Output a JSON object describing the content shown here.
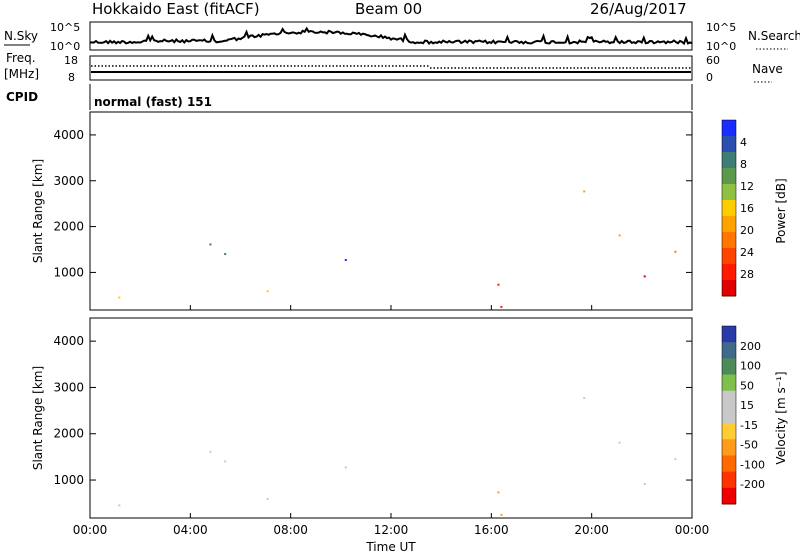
{
  "header": {
    "station": "Hokkaido East (fitACF)",
    "beam": "Beam 00",
    "date": "26/Aug/2017"
  },
  "nsky_panel": {
    "left_label": "N.Sky",
    "right_label": "N.Search",
    "ticks_left": [
      "10^5",
      "10^0"
    ],
    "ticks_right": [
      "10^5",
      "10^0"
    ]
  },
  "freq_panel": {
    "left_label_1": "Freq.",
    "left_label_2": "[MHz]",
    "right_label": "Nave",
    "ticks_left": [
      "18",
      "8"
    ],
    "ticks_right": [
      "60",
      "0"
    ]
  },
  "cpid_panel": {
    "label": "CPID",
    "value": "normal (fast) 151"
  },
  "chart_data": [
    {
      "type": "heatmap",
      "name": "power",
      "ylabel": "Slant Range [km]",
      "ylim": [
        180,
        4500
      ],
      "yticks": [
        "1000",
        "2000",
        "3000",
        "4000"
      ],
      "colorbar": {
        "label": "Power [dB]",
        "ticks": [
          "4",
          "8",
          "12",
          "16",
          "20",
          "24",
          "28"
        ],
        "colors": [
          "#1a2cff",
          "#2a4fb0",
          "#3f7d77",
          "#5a9a4a",
          "#8fc043",
          "#ffcc00",
          "#ffa200",
          "#ff7700",
          "#ff4400",
          "#ff1a00",
          "#e00000"
        ]
      }
    },
    {
      "type": "heatmap",
      "name": "velocity",
      "ylabel": "Slant Range [km]",
      "ylim": [
        180,
        4500
      ],
      "yticks": [
        "1000",
        "2000",
        "3000",
        "4000"
      ],
      "xlabel": "Time UT",
      "xticks": [
        "00:00",
        "04:00",
        "08:00",
        "12:00",
        "16:00",
        "20:00",
        "00:00"
      ],
      "colorbar": {
        "label": "Velocity [m s⁻¹]",
        "ticks": [
          "200",
          "100",
          "50",
          "15",
          "-15",
          "-50",
          "-100",
          "-200"
        ],
        "colors": [
          "#2a3aa8",
          "#3f6a8a",
          "#4d8c5a",
          "#7fc04a",
          "#c8c8c8",
          "#c8c8c8",
          "#ffcc33",
          "#ff9a1a",
          "#ff6a00",
          "#ff3300",
          "#ee0000"
        ]
      }
    }
  ]
}
